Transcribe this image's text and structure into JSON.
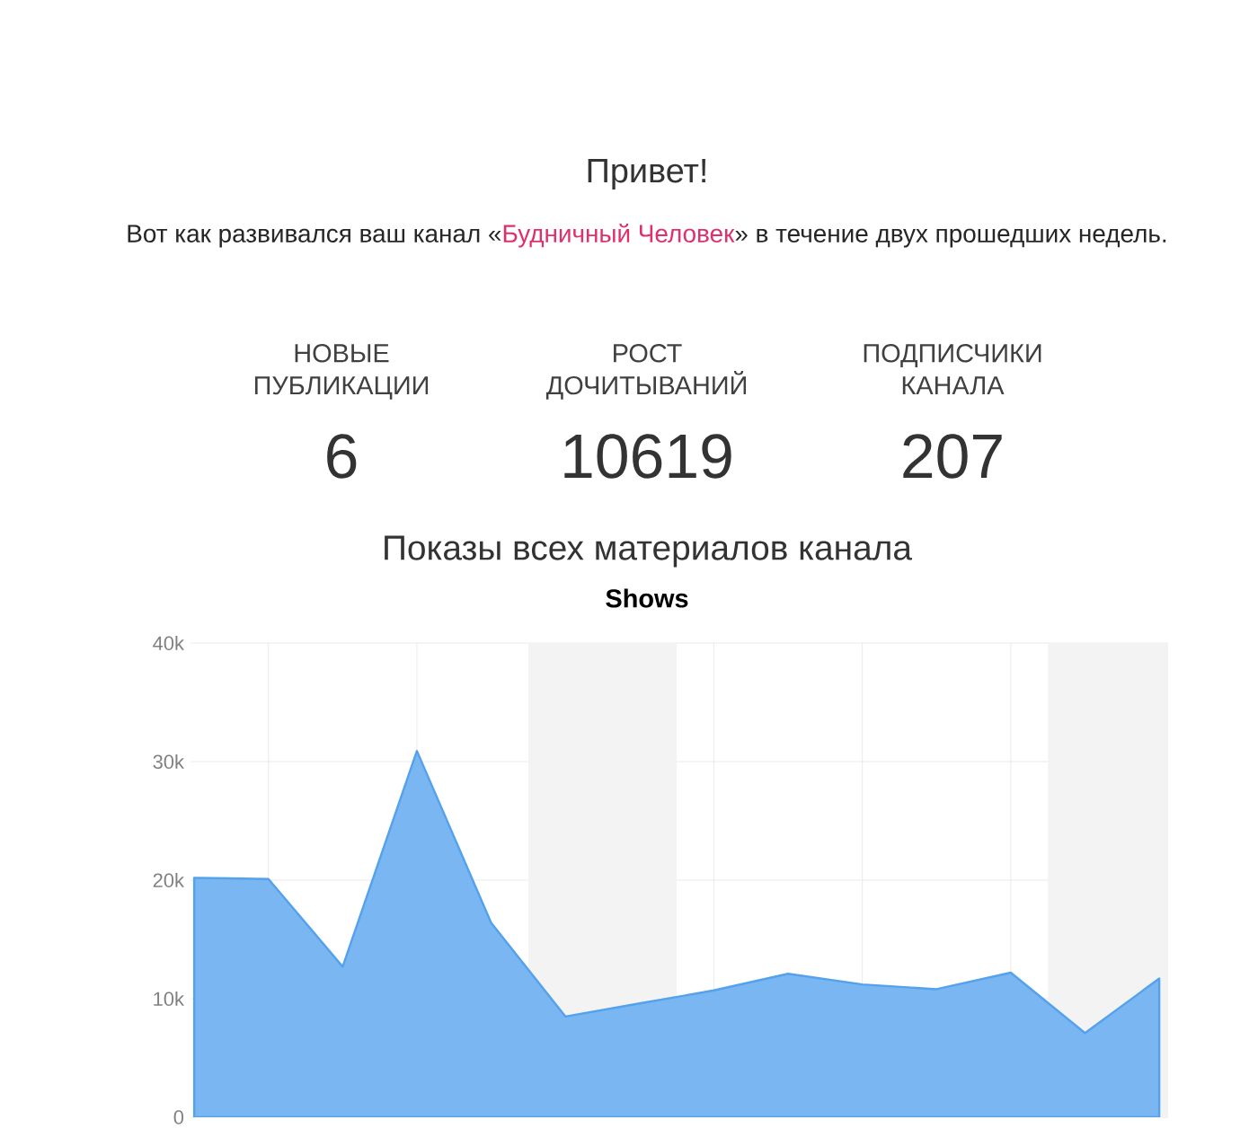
{
  "chart_data": [
    {
      "type": "other",
      "title": "Привет!",
      "annotations": [
        "Вот как развивался ваш канал «",
        "Будничный Человек",
        "» в течение двух прошедших недель."
      ],
      "categories": [
        "НОВЫЕ ПУБЛИКАЦИИ",
        "РОСТ ДОЧИТЫВАНИЙ",
        "ПОДПИСЧИКИ КАНАЛА"
      ],
      "value_labels": [
        "6",
        "10619",
        "207"
      ]
    },
    {
      "type": "area",
      "title": "Показы всех материалов канала",
      "subtitle": "Shows",
      "categories": [
        null,
        null,
        null,
        null,
        null,
        null,
        null,
        null,
        null,
        null,
        null,
        null,
        null,
        null
      ],
      "series": [
        {
          "color": "#7ab6f2",
          "values": [
            20200,
            20100,
            12700,
            30900,
            16400,
            8500,
            9600,
            10700,
            12100,
            11200,
            10800,
            12200,
            7100,
            11700
          ]
        }
      ],
      "ylim": [
        0,
        40000
      ],
      "yticks": [
        0,
        {
          "value": 10000,
          "label": "10k"
        },
        {
          "value": 20000,
          "label": "20k"
        },
        {
          "value": 30000,
          "label": "30k"
        },
        {
          "value": 40000,
          "label": "40k"
        }
      ],
      "grid": true,
      "marker": "none"
    }
  ]
}
